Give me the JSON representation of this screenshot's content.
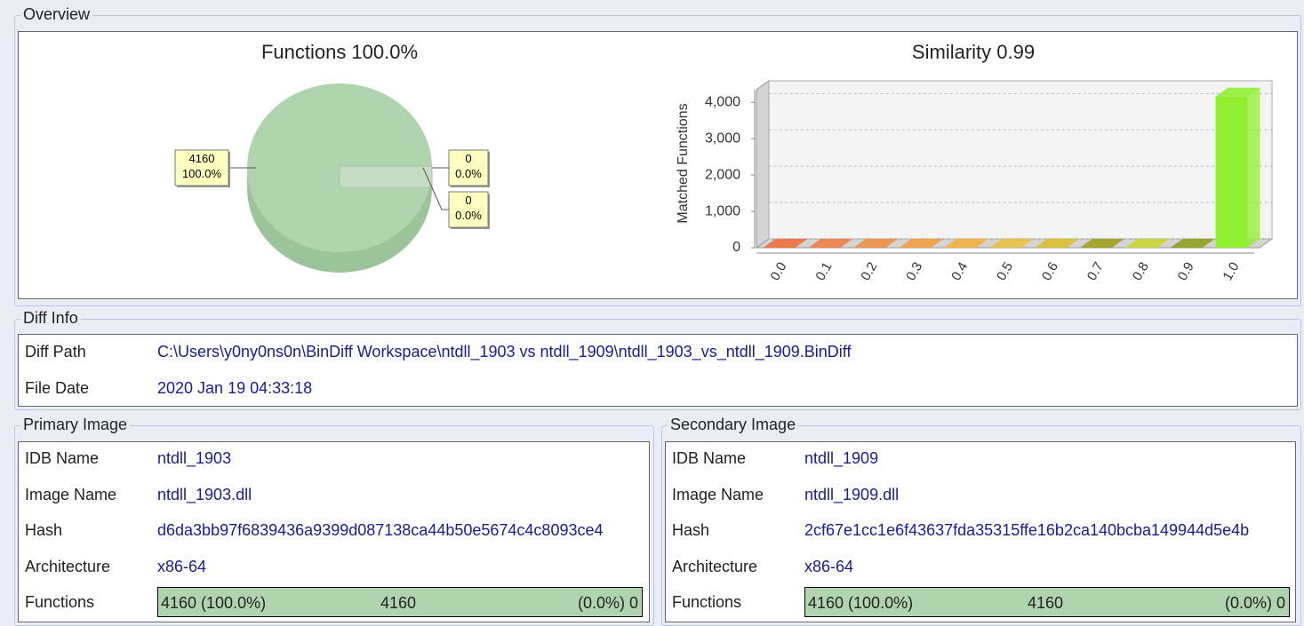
{
  "overview": {
    "title": "Overview",
    "pie": {
      "type": "pie",
      "title": "Functions 100.0%",
      "values": [
        4160,
        0,
        0
      ],
      "percent_labels": [
        "100.0%",
        "0.0%",
        "0.0%"
      ],
      "color": "#b0d4ae"
    },
    "bar": {
      "type": "bar",
      "title": "Similarity 0.99",
      "y_label": "Matched Functions",
      "categories": [
        "0.0",
        "0.1",
        "0.2",
        "0.3",
        "0.4",
        "0.5",
        "0.6",
        "0.7",
        "0.8",
        "0.9",
        "1.0"
      ],
      "values": [
        0,
        0,
        0,
        0,
        0,
        0,
        0,
        0,
        0,
        0,
        4160
      ],
      "colors": [
        "#f07040",
        "#f08048",
        "#f09048",
        "#f0a040",
        "#f0b040",
        "#e8c040",
        "#d8c030",
        "#a0a020",
        "#c8d830",
        "#90a020",
        "#90f030"
      ],
      "ylim": [
        0,
        4350
      ],
      "yticks": [
        0,
        {
          "value": 1000,
          "label": "1,000"
        },
        {
          "value": 2000,
          "label": "2,000"
        },
        {
          "value": 3000,
          "label": "3,000"
        },
        {
          "value": 4000,
          "label": "4,000"
        }
      ],
      "grid": true
    }
  },
  "diff_info": {
    "title": "Diff Info",
    "rows": [
      {
        "label": "Diff Path",
        "value": "C:\\Users\\y0ny0ns0n\\BinDiff Workspace\\ntdll_1903 vs ntdll_1909\\ntdll_1903_vs_ntdll_1909.BinDiff"
      },
      {
        "label": "File Date",
        "value": "2020 Jan 19 04:33:18"
      }
    ]
  },
  "primary": {
    "title": "Primary Image",
    "rows": [
      {
        "label": "IDB Name",
        "value": "ntdll_1903"
      },
      {
        "label": "Image Name",
        "value": "ntdll_1903.dll"
      },
      {
        "label": "Hash",
        "value": "d6da3bb97f6839436a9399d087138ca44b50e5674c4c8093ce4"
      },
      {
        "label": "Architecture",
        "value": "x86-64"
      }
    ],
    "functions": {
      "label": "Functions",
      "matched": "4160 (100.0%)",
      "total": 4160,
      "unmatched": "(0.0%) 0"
    }
  },
  "secondary": {
    "title": "Secondary Image",
    "rows": [
      {
        "label": "IDB Name",
        "value": "ntdll_1909"
      },
      {
        "label": "Image Name",
        "value": "ntdll_1909.dll"
      },
      {
        "label": "Hash",
        "value": "2cf67e1cc1e6f43637fda35315ffe16b2ca140bcba149944d5e4b"
      },
      {
        "label": "Architecture",
        "value": "x86-64"
      }
    ],
    "functions": {
      "label": "Functions",
      "matched": "4160 (100.0%)",
      "total": 4160,
      "unmatched": "(0.0%) 0"
    }
  }
}
